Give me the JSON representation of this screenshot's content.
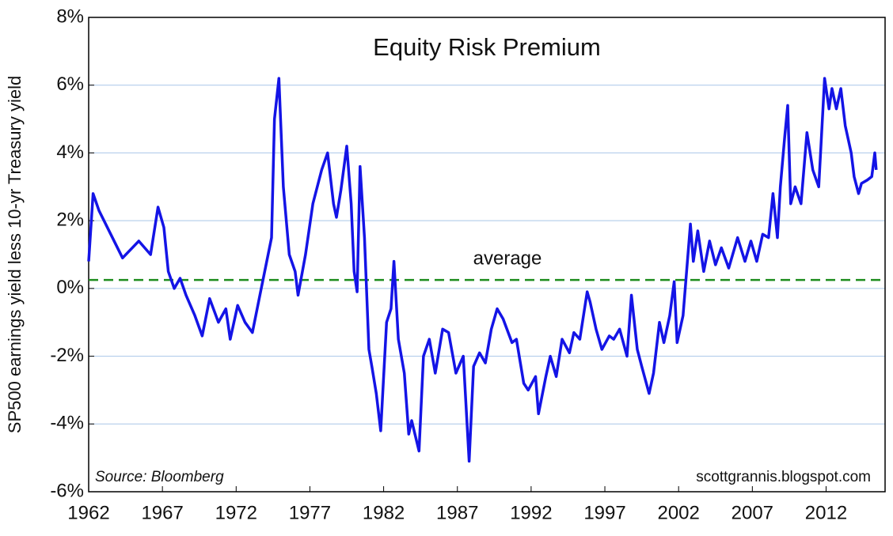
{
  "chart_data": {
    "type": "line",
    "title": "Equity Risk Premium",
    "ylabel": "SP500 earnings yield less 10-yr Treasury yield",
    "annotations": [
      "Source: Bloomberg",
      "scottgrannis.blogspot.com"
    ],
    "reference_line": {
      "value": 0.25,
      "label": "average",
      "color": "#1e8c1e"
    },
    "color": "#1414e6",
    "grid": true,
    "xlim": [
      1962,
      2016
    ],
    "ylim": [
      -6,
      8
    ],
    "xticks": [
      1962,
      1967,
      1972,
      1977,
      1982,
      1987,
      1992,
      1997,
      2002,
      2007,
      2012
    ],
    "yticks": [
      {
        "value": -6,
        "label": "-6%"
      },
      {
        "value": -4,
        "label": "-4%"
      },
      {
        "value": -2,
        "label": "-2%"
      },
      {
        "value": 0,
        "label": "0%"
      },
      {
        "value": 2,
        "label": "2%"
      },
      {
        "value": 4,
        "label": "4%"
      },
      {
        "value": 6,
        "label": "6%"
      },
      {
        "value": 8,
        "label": "8%"
      }
    ],
    "x": [
      1962.0,
      1962.3,
      1962.7,
      1963.5,
      1964.3,
      1965.4,
      1966.2,
      1966.7,
      1967.1,
      1967.4,
      1967.8,
      1968.2,
      1968.6,
      1969.2,
      1969.7,
      1970.2,
      1970.8,
      1971.3,
      1971.6,
      1972.1,
      1972.6,
      1973.1,
      1973.7,
      1974.4,
      1974.6,
      1974.9,
      1975.2,
      1975.6,
      1976.0,
      1976.2,
      1976.7,
      1977.2,
      1977.8,
      1978.2,
      1978.6,
      1978.8,
      1979.1,
      1979.5,
      1979.8,
      1980.0,
      1980.2,
      1980.4,
      1980.7,
      1981.0,
      1981.2,
      1981.5,
      1981.8,
      1982.2,
      1982.5,
      1982.7,
      1983.0,
      1983.4,
      1983.7,
      1983.9,
      1984.4,
      1984.7,
      1985.1,
      1985.5,
      1986.0,
      1986.4,
      1986.9,
      1987.4,
      1987.8,
      1988.1,
      1988.5,
      1988.9,
      1989.3,
      1989.7,
      1990.1,
      1990.7,
      1991.0,
      1991.5,
      1991.8,
      1992.3,
      1992.5,
      1993.0,
      1993.3,
      1993.7,
      1994.1,
      1994.6,
      1994.9,
      1995.3,
      1995.8,
      1996.0,
      1996.4,
      1996.8,
      1997.3,
      1997.6,
      1998.0,
      1998.5,
      1998.8,
      1999.2,
      1999.5,
      2000.0,
      2000.3,
      2000.7,
      2001.0,
      2001.4,
      2001.7,
      2001.9,
      2002.3,
      2002.8,
      2003.0,
      2003.3,
      2003.7,
      2004.1,
      2004.5,
      2004.9,
      2005.4,
      2006.0,
      2006.5,
      2006.9,
      2007.3,
      2007.7,
      2008.1,
      2008.4,
      2008.7,
      2008.9,
      2009.2,
      2009.4,
      2009.6,
      2009.9,
      2010.3,
      2010.7,
      2011.1,
      2011.5,
      2011.9,
      2012.2,
      2012.4,
      2012.7,
      2013.0,
      2013.3,
      2013.7,
      2013.9,
      2014.2,
      2014.4,
      2014.8,
      2015.1,
      2015.3,
      2015.4
    ],
    "values": [
      0.8,
      2.8,
      2.3,
      1.6,
      0.9,
      1.4,
      1.0,
      2.4,
      1.8,
      0.5,
      0.0,
      0.3,
      -0.2,
      -0.8,
      -1.4,
      -0.3,
      -1.0,
      -0.6,
      -1.5,
      -0.5,
      -1.0,
      -1.3,
      0.0,
      1.5,
      5.0,
      6.2,
      3.0,
      1.0,
      0.5,
      -0.2,
      1.0,
      2.5,
      3.5,
      4.0,
      2.5,
      2.1,
      2.9,
      4.2,
      2.5,
      0.5,
      -0.1,
      3.6,
      1.5,
      -1.8,
      -2.3,
      -3.1,
      -4.2,
      -1.0,
      -0.6,
      0.8,
      -1.5,
      -2.5,
      -4.3,
      -3.9,
      -4.8,
      -2.0,
      -1.5,
      -2.5,
      -1.2,
      -1.3,
      -2.5,
      -2.0,
      -5.1,
      -2.3,
      -1.9,
      -2.2,
      -1.2,
      -0.6,
      -0.9,
      -1.6,
      -1.5,
      -2.8,
      -3.0,
      -2.6,
      -3.7,
      -2.6,
      -2.0,
      -2.6,
      -1.5,
      -1.9,
      -1.3,
      -1.5,
      -0.1,
      -0.4,
      -1.2,
      -1.8,
      -1.4,
      -1.5,
      -1.2,
      -2.0,
      -0.2,
      -1.8,
      -2.3,
      -3.1,
      -2.5,
      -1.0,
      -1.6,
      -0.8,
      0.2,
      -1.6,
      -0.8,
      1.9,
      0.8,
      1.7,
      0.5,
      1.4,
      0.7,
      1.2,
      0.6,
      1.5,
      0.8,
      1.4,
      0.8,
      1.6,
      1.5,
      2.8,
      1.5,
      3.0,
      4.5,
      5.4,
      2.5,
      3.0,
      2.5,
      4.6,
      3.5,
      3.0,
      6.2,
      5.3,
      5.9,
      5.3,
      5.9,
      4.8,
      4.0,
      3.3,
      2.8,
      3.1,
      3.2,
      3.3,
      4.0,
      3.5
    ]
  }
}
